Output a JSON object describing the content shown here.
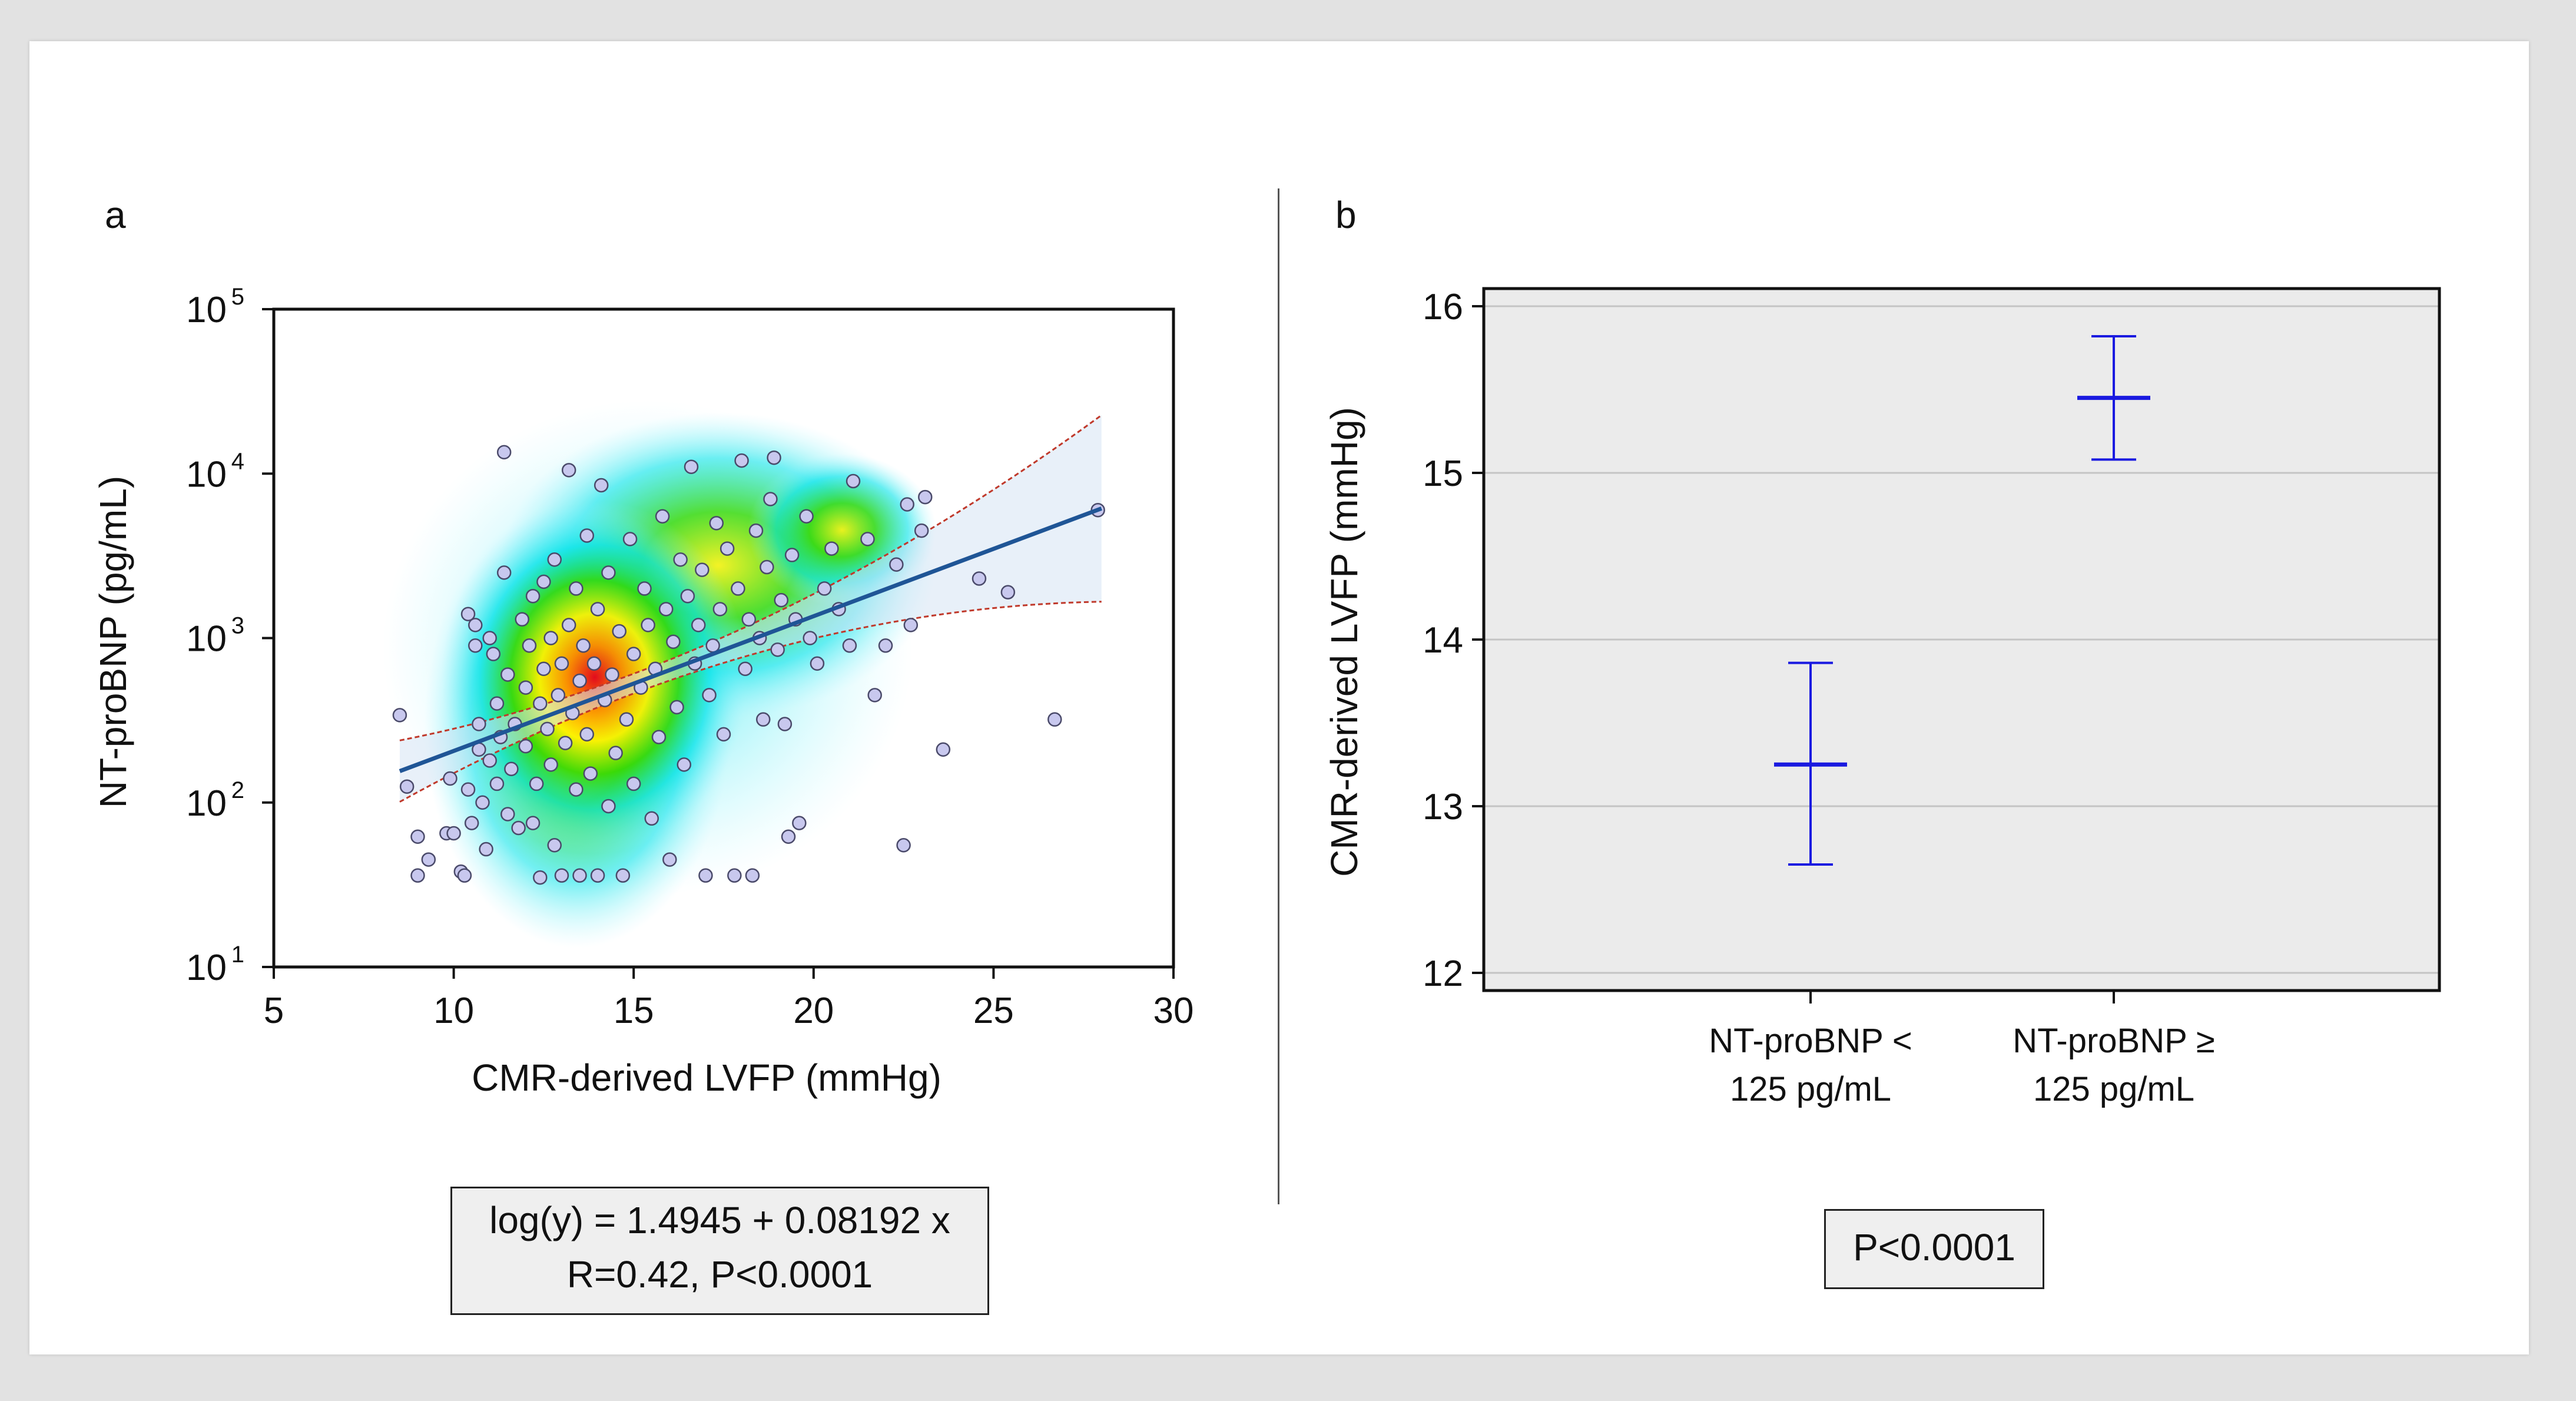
{
  "panels": {
    "a_label": "a",
    "b_label": "b"
  },
  "chart_data": [
    {
      "type": "scatter",
      "panel": "a",
      "xlabel": "CMR-derived LVFP (mmHg)",
      "ylabel": "NT-proBNP (pg/mL)",
      "xlim": [
        5,
        30
      ],
      "ylim": [
        10,
        100000
      ],
      "yscale": "log",
      "xticks": [
        5,
        10,
        15,
        20,
        25,
        30
      ],
      "yticks": [
        10,
        100,
        1000,
        10000,
        100000
      ],
      "ytick_labels": [
        {
          "base": "10",
          "exp": "1"
        },
        {
          "base": "10",
          "exp": "2"
        },
        {
          "base": "10",
          "exp": "3"
        },
        {
          "base": "10",
          "exp": "4"
        },
        {
          "base": "10",
          "exp": "5"
        }
      ],
      "regression": {
        "intercept": 1.4945,
        "slope": 0.08192,
        "x_range": [
          8.5,
          28
        ]
      },
      "fit_colors": {
        "line": "#1f5596",
        "ci_band": "#d6e4f4",
        "pi_line": "#c0392b",
        "point_fill": "#c8c8ee",
        "point_stroke": "#4a4a6a"
      },
      "points": [
        [
          8.5,
          340
        ],
        [
          8.7,
          125
        ],
        [
          9.0,
          62
        ],
        [
          9.0,
          36
        ],
        [
          9.3,
          45
        ],
        [
          9.8,
          65
        ],
        [
          9.9,
          140
        ],
        [
          10.0,
          65
        ],
        [
          10.2,
          38
        ],
        [
          10.3,
          36
        ],
        [
          10.4,
          1400
        ],
        [
          10.4,
          120
        ],
        [
          10.5,
          75
        ],
        [
          10.6,
          1200
        ],
        [
          10.6,
          900
        ],
        [
          10.7,
          300
        ],
        [
          10.7,
          210
        ],
        [
          10.8,
          100
        ],
        [
          10.9,
          52
        ],
        [
          11.0,
          180
        ],
        [
          11.0,
          1000
        ],
        [
          11.1,
          800
        ],
        [
          11.2,
          130
        ],
        [
          11.2,
          400
        ],
        [
          11.3,
          250
        ],
        [
          11.4,
          2500
        ],
        [
          11.4,
          13500
        ],
        [
          11.5,
          600
        ],
        [
          11.5,
          85
        ],
        [
          11.6,
          160
        ],
        [
          11.7,
          300
        ],
        [
          11.8,
          70
        ],
        [
          11.9,
          1300
        ],
        [
          12.0,
          220
        ],
        [
          12.0,
          500
        ],
        [
          12.1,
          900
        ],
        [
          12.2,
          1800
        ],
        [
          12.2,
          75
        ],
        [
          12.3,
          130
        ],
        [
          12.4,
          400
        ],
        [
          12.4,
          35
        ],
        [
          12.5,
          2200
        ],
        [
          12.5,
          650
        ],
        [
          12.6,
          280
        ],
        [
          12.7,
          170
        ],
        [
          12.7,
          1000
        ],
        [
          12.8,
          55
        ],
        [
          12.8,
          3000
        ],
        [
          12.9,
          450
        ],
        [
          13.0,
          700
        ],
        [
          13.0,
          36
        ],
        [
          13.1,
          230
        ],
        [
          13.2,
          1200
        ],
        [
          13.2,
          10500
        ],
        [
          13.3,
          350
        ],
        [
          13.4,
          120
        ],
        [
          13.4,
          2000
        ],
        [
          13.5,
          550
        ],
        [
          13.5,
          36
        ],
        [
          13.6,
          900
        ],
        [
          13.7,
          4200
        ],
        [
          13.7,
          260
        ],
        [
          13.8,
          150
        ],
        [
          13.9,
          700
        ],
        [
          14.0,
          1500
        ],
        [
          14.0,
          36
        ],
        [
          14.1,
          8500
        ],
        [
          14.2,
          420
        ],
        [
          14.3,
          95
        ],
        [
          14.3,
          2500
        ],
        [
          14.4,
          600
        ],
        [
          14.5,
          200
        ],
        [
          14.6,
          1100
        ],
        [
          14.7,
          36
        ],
        [
          14.8,
          320
        ],
        [
          14.9,
          4000
        ],
        [
          15.0,
          800
        ],
        [
          15.0,
          130
        ],
        [
          15.2,
          500
        ],
        [
          15.3,
          2000
        ],
        [
          15.4,
          1200
        ],
        [
          15.5,
          80
        ],
        [
          15.6,
          650
        ],
        [
          15.7,
          250
        ],
        [
          15.8,
          5500
        ],
        [
          15.9,
          1500
        ],
        [
          16.0,
          45
        ],
        [
          16.1,
          950
        ],
        [
          16.2,
          380
        ],
        [
          16.3,
          3000
        ],
        [
          16.4,
          170
        ],
        [
          16.5,
          1800
        ],
        [
          16.6,
          11000
        ],
        [
          16.7,
          700
        ],
        [
          16.8,
          1200
        ],
        [
          16.9,
          2600
        ],
        [
          17.0,
          36
        ],
        [
          17.1,
          450
        ],
        [
          17.2,
          900
        ],
        [
          17.3,
          5000
        ],
        [
          17.4,
          1500
        ],
        [
          17.5,
          260
        ],
        [
          17.6,
          3500
        ],
        [
          17.8,
          36
        ],
        [
          17.9,
          2000
        ],
        [
          18.0,
          12000
        ],
        [
          18.1,
          650
        ],
        [
          18.2,
          1300
        ],
        [
          18.3,
          36
        ],
        [
          18.4,
          4500
        ],
        [
          18.5,
          1000
        ],
        [
          18.6,
          320
        ],
        [
          18.7,
          2700
        ],
        [
          18.8,
          7000
        ],
        [
          18.9,
          12500
        ],
        [
          19.0,
          850
        ],
        [
          19.1,
          1700
        ],
        [
          19.2,
          300
        ],
        [
          19.3,
          62
        ],
        [
          19.4,
          3200
        ],
        [
          19.5,
          1300
        ],
        [
          19.6,
          75
        ],
        [
          19.8,
          5500
        ],
        [
          19.9,
          1000
        ],
        [
          20.1,
          700
        ],
        [
          20.3,
          2000
        ],
        [
          20.5,
          3500
        ],
        [
          20.7,
          1500
        ],
        [
          21.0,
          900
        ],
        [
          21.1,
          9000
        ],
        [
          21.5,
          4000
        ],
        [
          21.7,
          450
        ],
        [
          22.0,
          900
        ],
        [
          22.3,
          2800
        ],
        [
          22.5,
          55
        ],
        [
          22.6,
          6500
        ],
        [
          22.7,
          1200
        ],
        [
          23.0,
          4500
        ],
        [
          23.1,
          7200
        ],
        [
          23.6,
          210
        ],
        [
          24.6,
          2300
        ],
        [
          25.4,
          1900
        ],
        [
          26.7,
          320
        ],
        [
          27.9,
          6000
        ]
      ]
    },
    {
      "type": "errorbar",
      "panel": "b",
      "ylabel": "CMR-derived LVFP (mmHg)",
      "ylim": [
        12,
        16
      ],
      "yticks": [
        12,
        13,
        14,
        15,
        16
      ],
      "categories": [
        [
          "NT-proBNP <",
          "125 pg/mL"
        ],
        [
          "NT-proBNP ≥",
          "125 pg/mL"
        ]
      ],
      "means": [
        13.25,
        15.45
      ],
      "lower": [
        12.65,
        15.08
      ],
      "upper": [
        13.86,
        15.82
      ],
      "colors": {
        "marker": "#1a1ae0",
        "plot_bg": "#ebebeb",
        "grid": "#c4c4c4"
      }
    }
  ],
  "regression_box": {
    "line1": "log(y) = 1.4945 + 0.08192 x",
    "line2": "R=0.42, P<0.0001"
  },
  "p_box": {
    "text": "P<0.0001"
  }
}
